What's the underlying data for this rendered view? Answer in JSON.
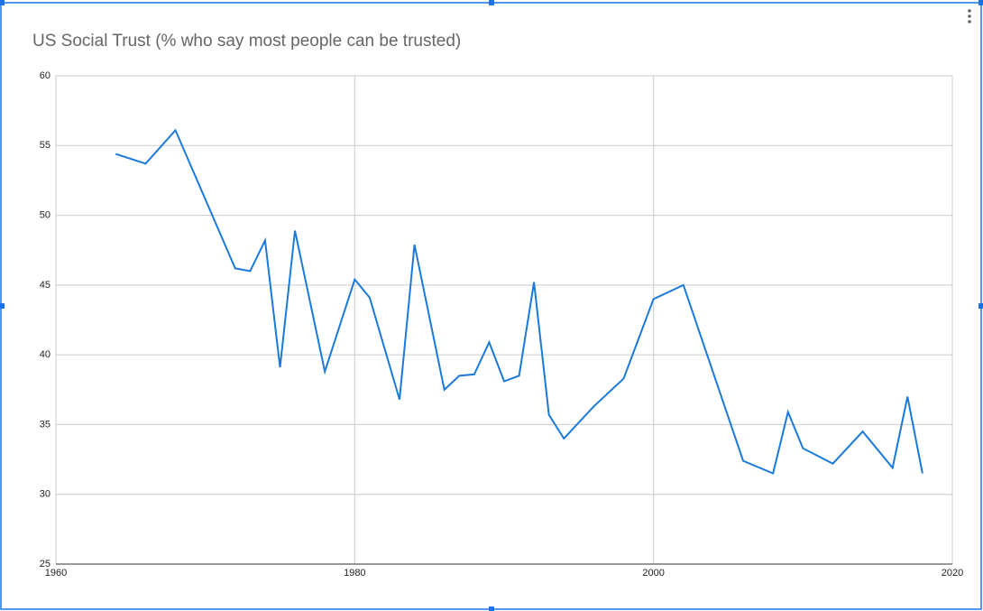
{
  "chart_data": {
    "type": "line",
    "title": "US Social Trust (% who say most people can be trusted)",
    "x": [
      1964,
      1966,
      1968,
      1972,
      1973,
      1974,
      1975,
      1976,
      1978,
      1980,
      1981,
      1983,
      1984,
      1986,
      1987,
      1988,
      1989,
      1990,
      1991,
      1992,
      1993,
      1994,
      1996,
      1998,
      2000,
      2002,
      2006,
      2008,
      2009,
      2010,
      2012,
      2014,
      2016,
      2017,
      2018
    ],
    "values": [
      54.4,
      53.7,
      56.1,
      46.2,
      46.0,
      48.2,
      39.1,
      48.9,
      38.8,
      45.4,
      44.1,
      36.8,
      47.9,
      37.5,
      38.5,
      38.6,
      40.9,
      38.1,
      38.5,
      45.2,
      35.7,
      34.0,
      36.3,
      38.3,
      44.0,
      45.0,
      32.4,
      31.5,
      35.9,
      33.3,
      32.2,
      34.5,
      31.9,
      37.0,
      31.5
    ],
    "color": "#1a7ad9",
    "xlim": [
      1960,
      2020
    ],
    "xticks": [
      1960,
      1980,
      2000,
      2020
    ],
    "ylim": [
      25,
      60
    ],
    "yticks": [
      25,
      30,
      35,
      40,
      45,
      50,
      55,
      60
    ],
    "grid": true
  }
}
